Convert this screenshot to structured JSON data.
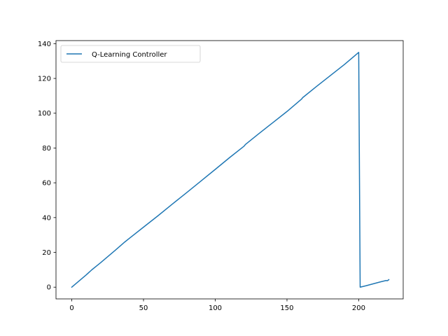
{
  "chart_data": {
    "type": "line",
    "title": "",
    "xlabel": "",
    "ylabel": "",
    "xlim": [
      -11,
      231
    ],
    "ylim": [
      -6.75,
      141.75
    ],
    "xticks": [
      0,
      50,
      100,
      150,
      200
    ],
    "yticks": [
      0,
      20,
      40,
      60,
      80,
      100,
      120,
      140
    ],
    "grid": false,
    "legend_position": "top-left",
    "series": [
      {
        "name": "Q-Learning Controller",
        "color": "#1f77b4",
        "x": [
          0,
          10,
          14,
          20,
          30,
          37,
          40,
          50,
          60,
          70,
          80,
          90,
          100,
          110,
          120,
          121,
          130,
          140,
          150,
          160,
          161,
          170,
          180,
          190,
          200,
          200,
          201,
          205,
          210,
          215,
          219,
          220,
          221
        ],
        "y": [
          0,
          7,
          10,
          14,
          21,
          26,
          28,
          34.5,
          41,
          47.7,
          54.3,
          61,
          67.7,
          74.5,
          81,
          82,
          88,
          94.5,
          101,
          108,
          109,
          115,
          121.5,
          128,
          135,
          134,
          0,
          0.8,
          1.9,
          3,
          3.8,
          3.7,
          4.3
        ]
      }
    ]
  }
}
